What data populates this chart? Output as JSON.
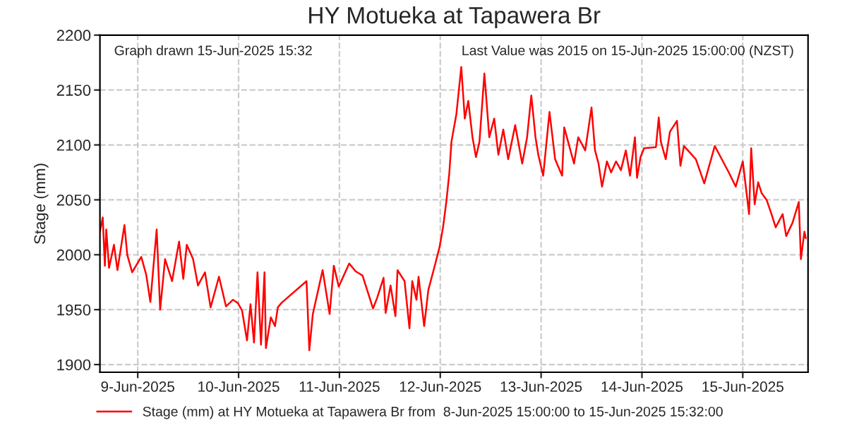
{
  "chart_data": {
    "type": "line",
    "title": "HY Motueka at Tapawera Br",
    "ylabel": "Stage (mm)",
    "annotations": [
      "Graph drawn 15-Jun-2025 15:32",
      "Last Value was 2015 on 15-Jun-2025 15:00:00 (NZST)"
    ],
    "xlim": [
      "2025-06-08T15:00",
      "2025-06-15T15:32"
    ],
    "xticks": [
      {
        "value": "2025-06-09",
        "label": "9-Jun-2025"
      },
      {
        "value": "2025-06-10",
        "label": "10-Jun-2025"
      },
      {
        "value": "2025-06-11",
        "label": "11-Jun-2025"
      },
      {
        "value": "2025-06-12",
        "label": "12-Jun-2025"
      },
      {
        "value": "2025-06-13",
        "label": "13-Jun-2025"
      },
      {
        "value": "2025-06-14",
        "label": "14-Jun-2025"
      },
      {
        "value": "2025-06-15",
        "label": "15-Jun-2025"
      }
    ],
    "ylim": [
      1893,
      2200
    ],
    "yticks": [
      1900,
      1950,
      2000,
      2050,
      2100,
      2150,
      2200
    ],
    "grid": true,
    "legend": "bottom",
    "marker": "none",
    "line_style": "solid",
    "series": [
      {
        "name": "Stage (mm) at HY Motueka at Tapawera Br from  8-Jun-2025 15:00:00 to 15-Jun-2025 15:32:00",
        "color": "#ff0000",
        "x": [
          "2025-06-08T15:00",
          "2025-06-08T15:40",
          "2025-06-08T16:10",
          "2025-06-08T16:30",
          "2025-06-08T17:10",
          "2025-06-08T18:20",
          "2025-06-08T19:10",
          "2025-06-08T20:50",
          "2025-06-08T21:30",
          "2025-06-08T22:40",
          "2025-06-09T00:50",
          "2025-06-09T02:00",
          "2025-06-09T03:00",
          "2025-06-09T04:30",
          "2025-06-09T05:20",
          "2025-06-09T06:30",
          "2025-06-09T08:10",
          "2025-06-09T09:50",
          "2025-06-09T10:50",
          "2025-06-09T11:40",
          "2025-06-09T13:10",
          "2025-06-09T14:20",
          "2025-06-09T16:00",
          "2025-06-09T17:20",
          "2025-06-09T19:20",
          "2025-06-09T21:00",
          "2025-06-09T22:40",
          "2025-06-09T23:50",
          "2025-06-10T00:50",
          "2025-06-10T02:00",
          "2025-06-10T02:50",
          "2025-06-10T03:40",
          "2025-06-10T04:30",
          "2025-06-10T05:20",
          "2025-06-10T06:10",
          "2025-06-10T06:30",
          "2025-06-10T07:40",
          "2025-06-10T08:40",
          "2025-06-10T09:20",
          "2025-06-10T10:10",
          "2025-06-10T16:10",
          "2025-06-10T16:50",
          "2025-06-10T17:40",
          "2025-06-10T20:00",
          "2025-06-10T21:40",
          "2025-06-10T22:40",
          "2025-06-10T23:50",
          "2025-06-11T02:20",
          "2025-06-11T03:50",
          "2025-06-11T05:30",
          "2025-06-11T08:00",
          "2025-06-11T09:00",
          "2025-06-11T10:30",
          "2025-06-11T11:00",
          "2025-06-11T12:10",
          "2025-06-11T13:20",
          "2025-06-11T13:50",
          "2025-06-11T15:30",
          "2025-06-11T16:40",
          "2025-06-11T17:20",
          "2025-06-11T18:20",
          "2025-06-11T18:50",
          "2025-06-11T20:10",
          "2025-06-11T21:10",
          "2025-06-11T22:50",
          "2025-06-11T23:50",
          "2025-06-12T00:40",
          "2025-06-12T01:30",
          "2025-06-12T02:10",
          "2025-06-12T02:40",
          "2025-06-12T03:50",
          "2025-06-12T05:00",
          "2025-06-12T05:50",
          "2025-06-12T06:40",
          "2025-06-12T07:40",
          "2025-06-12T08:30",
          "2025-06-12T09:20",
          "2025-06-12T10:30",
          "2025-06-12T11:40",
          "2025-06-12T12:50",
          "2025-06-12T13:50",
          "2025-06-12T15:00",
          "2025-06-12T16:10",
          "2025-06-12T17:50",
          "2025-06-12T19:30",
          "2025-06-12T20:40",
          "2025-06-12T21:40",
          "2025-06-12T22:40",
          "2025-06-12T23:20",
          "2025-06-13T00:30",
          "2025-06-13T02:00",
          "2025-06-13T03:20",
          "2025-06-13T05:00",
          "2025-06-13T05:30",
          "2025-06-13T07:50",
          "2025-06-13T08:50",
          "2025-06-13T10:30",
          "2025-06-13T12:00",
          "2025-06-13T12:50",
          "2025-06-13T13:40",
          "2025-06-13T14:30",
          "2025-06-13T15:40",
          "2025-06-13T16:40",
          "2025-06-13T17:50",
          "2025-06-13T19:00",
          "2025-06-13T20:10",
          "2025-06-13T21:10",
          "2025-06-13T22:20",
          "2025-06-13T22:50",
          "2025-06-13T23:40",
          "2025-06-14T00:30",
          "2025-06-14T03:20",
          "2025-06-14T04:00",
          "2025-06-14T04:30",
          "2025-06-14T05:40",
          "2025-06-14T06:40",
          "2025-06-14T08:20",
          "2025-06-14T09:10",
          "2025-06-14T10:00",
          "2025-06-14T12:50",
          "2025-06-14T14:50",
          "2025-06-14T17:20",
          "2025-06-14T20:40",
          "2025-06-14T22:20",
          "2025-06-15T00:00",
          "2025-06-15T01:30",
          "2025-06-15T02:00",
          "2025-06-15T02:50",
          "2025-06-15T03:40",
          "2025-06-15T04:30",
          "2025-06-15T05:40",
          "2025-06-15T06:50",
          "2025-06-15T07:50",
          "2025-06-15T09:30",
          "2025-06-15T10:20",
          "2025-06-15T11:50",
          "2025-06-15T13:20",
          "2025-06-15T13:50",
          "2025-06-15T14:40",
          "2025-06-15T15:00"
        ],
        "values": [
          2021,
          2034,
          1990,
          2023,
          1988,
          2009,
          1986,
          2027,
          2000,
          1984,
          1998,
          1982,
          1957,
          2023,
          1950,
          1996,
          1976,
          2012,
          1978,
          2009,
          1996,
          1972,
          1984,
          1952,
          1980,
          1953,
          1959,
          1956,
          1949,
          1922,
          1955,
          1920,
          1984,
          1918,
          1984,
          1915,
          1943,
          1935,
          1952,
          1956,
          1976,
          1913,
          1946,
          1986,
          1946,
          1990,
          1971,
          1992,
          1985,
          1981,
          1951,
          1961,
          1979,
          1947,
          1972,
          1944,
          1986,
          1976,
          1933,
          1976,
          1959,
          1980,
          1935,
          1968,
          1992,
          2007,
          2025,
          2050,
          2075,
          2103,
          2128,
          2171,
          2124,
          2140,
          2107,
          2089,
          2103,
          2165,
          2107,
          2124,
          2091,
          2114,
          2087,
          2118,
          2083,
          2107,
          2145,
          2107,
          2091,
          2072,
          2130,
          2087,
          2072,
          2116,
          2083,
          2107,
          2095,
          2134,
          2095,
          2083,
          2062,
          2085,
          2075,
          2085,
          2077,
          2095,
          2072,
          2107,
          2070,
          2089,
          2097,
          2098,
          2125,
          2103,
          2087,
          2112,
          2122,
          2081,
          2099,
          2087,
          2065,
          2099,
          2075,
          2062,
          2085,
          2037,
          2097,
          2046,
          2066,
          2056,
          2050,
          2037,
          2025,
          2037,
          2017,
          2029,
          2048,
          1996,
          2021,
          2015
        ]
      }
    ]
  }
}
